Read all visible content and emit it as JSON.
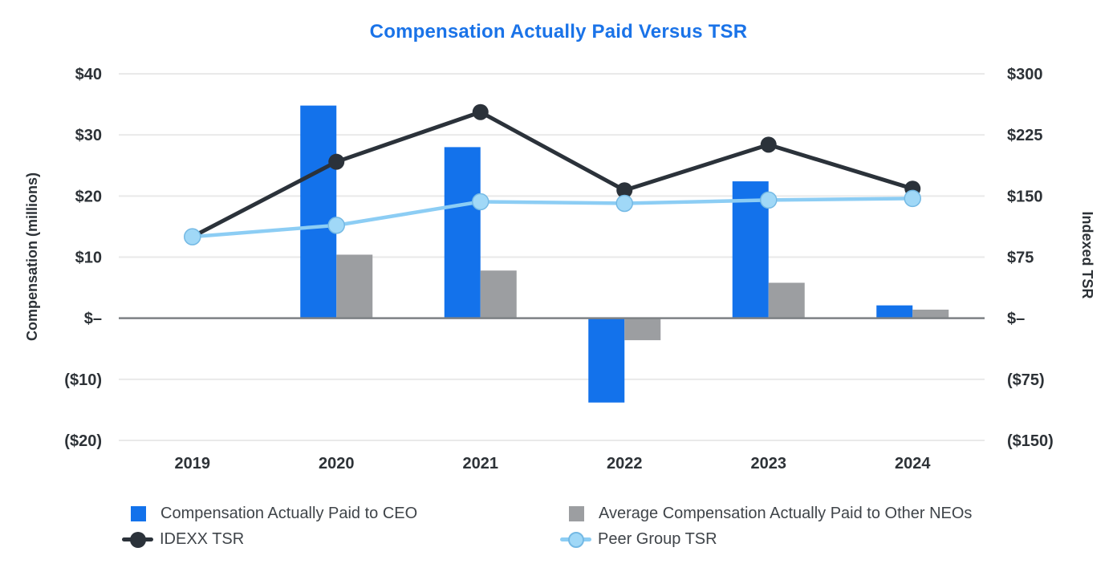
{
  "title": "Compensation Actually Paid Versus TSR",
  "colors": {
    "title": "#1a73e8",
    "ceo_bar": "#1372eb",
    "neo_bar": "#9c9ea1",
    "idexx_line": "#2b323a",
    "peer_line": "#8ccdf4",
    "peer_dot_fill": "#a0d8f7",
    "peer_dot_stroke": "#74b9e4",
    "grid": "#e9e9e9",
    "zero_line": "#7d8184",
    "axis_text": "#2d3237",
    "legend_text": "#3f4449"
  },
  "chart_data": {
    "type": "combo-bar-line",
    "title": "Compensation Actually Paid Versus TSR",
    "categories": [
      "2019",
      "2020",
      "2021",
      "2022",
      "2023",
      "2024"
    ],
    "grid": true,
    "legend_position": "bottom",
    "left_axis": {
      "label": "Compensation (millions)",
      "range": [
        -20,
        40
      ],
      "ticks": [
        {
          "label": "$40",
          "value": 40
        },
        {
          "label": "$30",
          "value": 30
        },
        {
          "label": "$20",
          "value": 20
        },
        {
          "label": "$10",
          "value": 10
        },
        {
          "label": "$–",
          "value": 0
        },
        {
          "label": "($10)",
          "value": -10
        },
        {
          "label": "($20)",
          "value": -20
        }
      ]
    },
    "right_axis": {
      "label": "Indexed TSR",
      "range": [
        -150,
        300
      ],
      "ticks": [
        {
          "label": "$300",
          "value": 300
        },
        {
          "label": "$225",
          "value": 225
        },
        {
          "label": "$150",
          "value": 150
        },
        {
          "label": "$75",
          "value": 75
        },
        {
          "label": "$–",
          "value": 0
        },
        {
          "label": "($75)",
          "value": -75
        },
        {
          "label": "($150)",
          "value": -150
        }
      ]
    },
    "bar_series": [
      {
        "name": "Compensation Actually Paid to CEO",
        "axis": "left",
        "values": [
          null,
          34.8,
          28.0,
          -13.8,
          22.4,
          2.1
        ]
      },
      {
        "name": "Average Compensation Actually Paid to Other NEOs",
        "axis": "left",
        "values": [
          null,
          10.4,
          7.8,
          -3.6,
          5.8,
          1.4
        ]
      }
    ],
    "line_series": [
      {
        "name": "IDEXX TSR",
        "axis": "right",
        "values": [
          100,
          192,
          253,
          157,
          213,
          159
        ]
      },
      {
        "name": "Peer Group TSR",
        "axis": "right",
        "values": [
          100,
          114,
          143,
          141,
          145,
          147
        ]
      }
    ]
  }
}
